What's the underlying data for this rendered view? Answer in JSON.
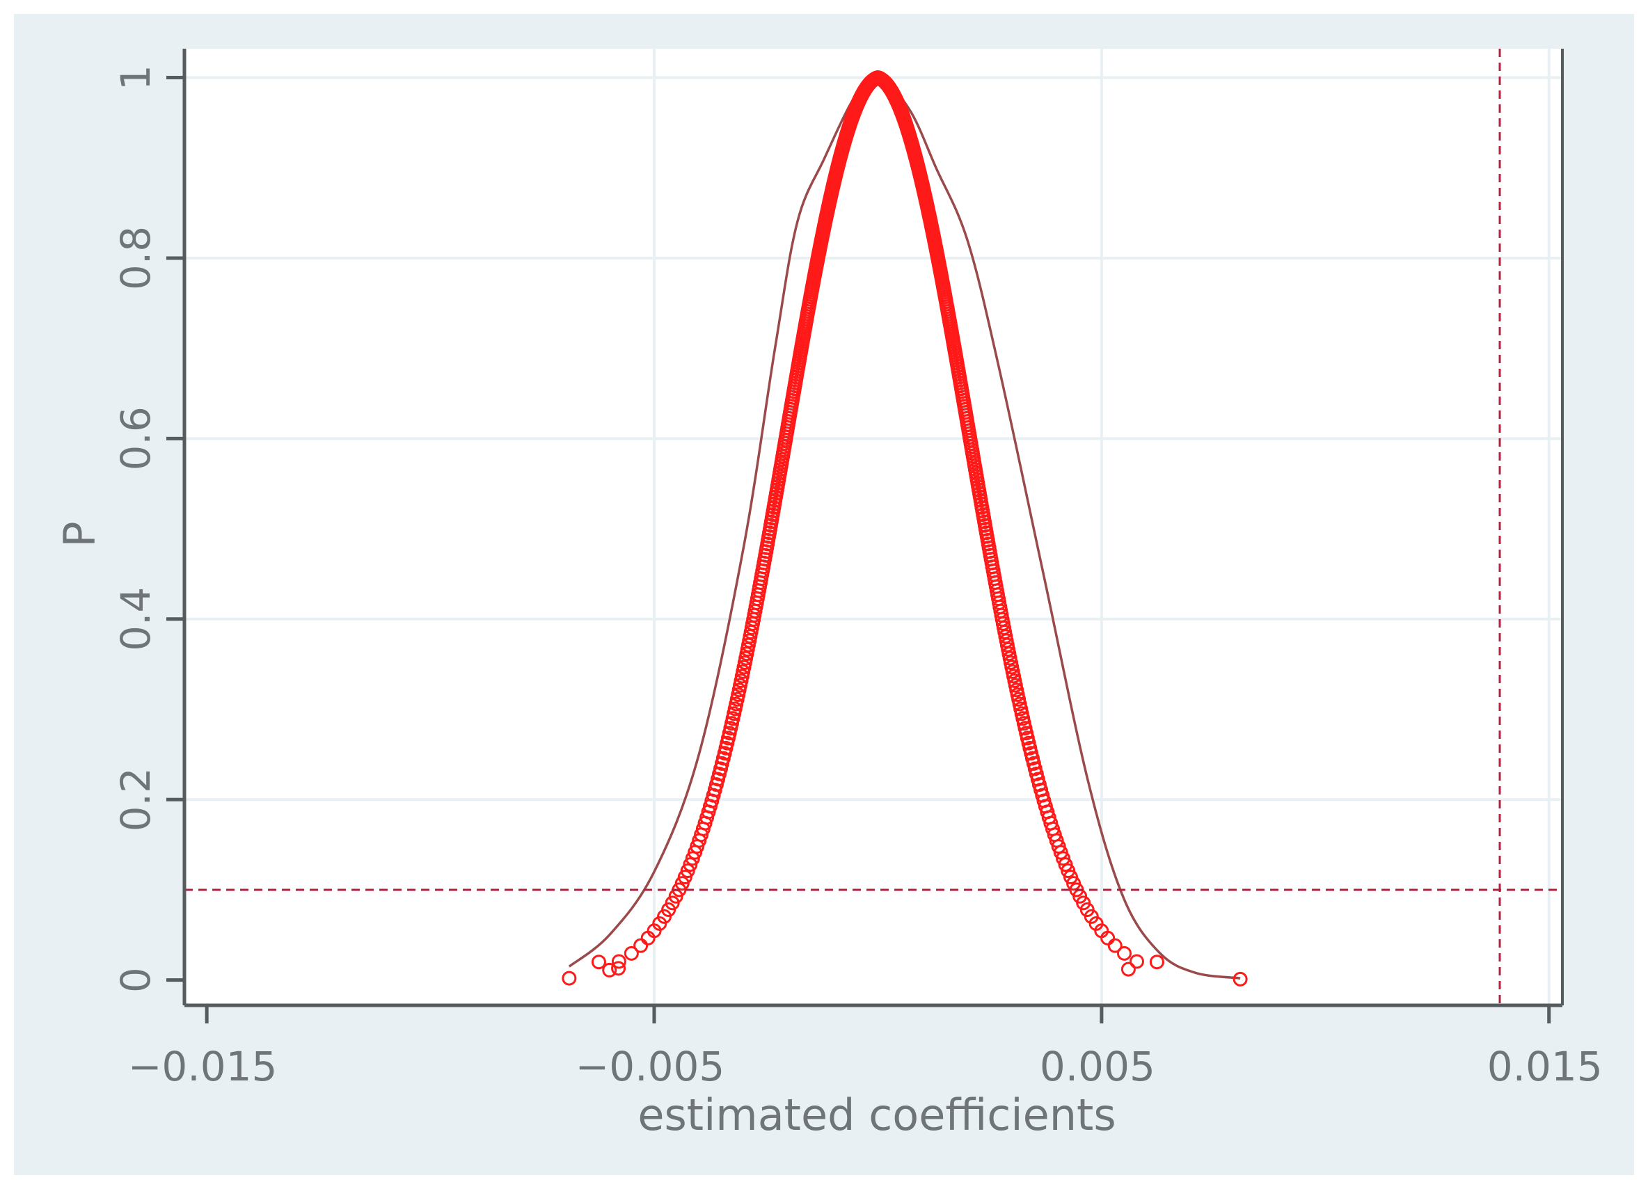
{
  "chart_data": {
    "type": "scatter",
    "xlabel": "estimated coefficients",
    "ylabel": "P",
    "xlim": [
      -0.0155,
      0.0153
    ],
    "ylim": [
      -0.028,
      1.032
    ],
    "x_ticks": [
      {
        "value": -0.015,
        "label": "−0.015"
      },
      {
        "value": -0.005,
        "label": "−0.005"
      },
      {
        "value": 0.005,
        "label": "0.005"
      },
      {
        "value": 0.015,
        "label": "0.015"
      }
    ],
    "y_ticks": [
      {
        "value": 0,
        "label": "0"
      },
      {
        "value": 0.2,
        "label": "0.2"
      },
      {
        "value": 0.4,
        "label": "0.4"
      },
      {
        "value": 0.6,
        "label": "0.6"
      },
      {
        "value": 0.8,
        "label": "0.8"
      },
      {
        "value": 1,
        "label": "1"
      }
    ],
    "x_grid": [
      -0.005,
      0.005,
      0.015
    ],
    "y_grid": [
      0.2,
      0.4,
      0.6,
      0.8,
      1
    ],
    "reference_lines": {
      "horizontal": 0.1,
      "vertical": 0.0139
    },
    "scatter_series": {
      "mean": 0.0,
      "sd": 0.0021,
      "marker": "hollow-circle",
      "count": 700,
      "outliers": [
        {
          "x": -0.0069,
          "y": 0.002
        },
        {
          "x": -0.006,
          "y": 0.011
        },
        {
          "x": -0.0058,
          "y": 0.013
        },
        {
          "x": 0.0056,
          "y": 0.012
        },
        {
          "x": 0.0081,
          "y": 0.001
        }
      ]
    },
    "envelope_curve": [
      [
        -0.0069,
        0.015
      ],
      [
        -0.006,
        0.05
      ],
      [
        -0.005,
        0.12
      ],
      [
        -0.004,
        0.25
      ],
      [
        -0.003,
        0.48
      ],
      [
        -0.0023,
        0.7
      ],
      [
        -0.0018,
        0.84
      ],
      [
        -0.0012,
        0.91
      ],
      [
        -0.0005,
        0.98
      ],
      [
        0.0,
        1.0
      ],
      [
        0.0007,
        0.965
      ],
      [
        0.0013,
        0.9
      ],
      [
        0.002,
        0.82
      ],
      [
        0.0027,
        0.68
      ],
      [
        0.0037,
        0.45
      ],
      [
        0.0047,
        0.22
      ],
      [
        0.0055,
        0.09
      ],
      [
        0.0063,
        0.03
      ],
      [
        0.0071,
        0.008
      ],
      [
        0.0081,
        0.002
      ]
    ],
    "colors": {
      "figure_background": "#e9f0f3",
      "plot_background": "#ffffff",
      "grid": "#e9f0f3",
      "axis": "#565b5e",
      "tick_text": "#6f7478",
      "scatter": "#ff1a1a",
      "envelope": "#9a4a4a",
      "reference_line": "#b0223c"
    }
  }
}
